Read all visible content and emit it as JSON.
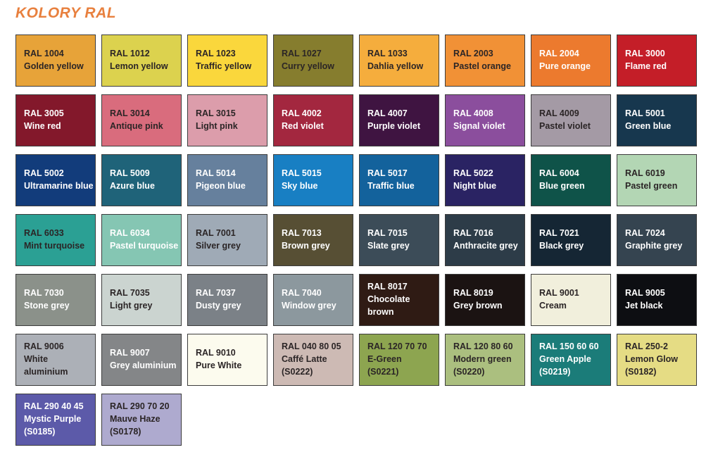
{
  "title": {
    "text": "KOLORY RAL"
  },
  "colors": {
    "accent": "#E8803E",
    "swatch_border": "#3C3C3C",
    "text_dark": "#2B2526",
    "text_light": "#FFFFFF",
    "page_bg": "#FFFFFF"
  },
  "swatches": [
    {
      "code": "RAL 1004",
      "name": "Golden yellow",
      "sub": "",
      "bg": "#E7A339",
      "text": "dark"
    },
    {
      "code": "RAL 1012",
      "name": "Lemon yellow",
      "sub": "",
      "bg": "#DCD24E",
      "text": "dark"
    },
    {
      "code": "RAL 1023",
      "name": "Traffic yellow",
      "sub": "",
      "bg": "#FAD73C",
      "text": "dark"
    },
    {
      "code": "RAL 1027",
      "name": "Curry yellow",
      "sub": "",
      "bg": "#867D2E",
      "text": "dark"
    },
    {
      "code": "RAL 1033",
      "name": "Dahlia yellow",
      "sub": "",
      "bg": "#F5AD3D",
      "text": "dark"
    },
    {
      "code": "RAL 2003",
      "name": "Pastel orange",
      "sub": "",
      "bg": "#F19136",
      "text": "dark"
    },
    {
      "code": "RAL 2004",
      "name": "Pure orange",
      "sub": "",
      "bg": "#EC7A2E",
      "text": "light"
    },
    {
      "code": "RAL 3000",
      "name": "Flame red",
      "sub": "",
      "bg": "#C41E28",
      "text": "light"
    },
    {
      "code": "RAL 3005",
      "name": "Wine red",
      "sub": "",
      "bg": "#83182B",
      "text": "light"
    },
    {
      "code": "RAL 3014",
      "name": "Antique pink",
      "sub": "",
      "bg": "#D96C7D",
      "text": "dark"
    },
    {
      "code": "RAL 3015",
      "name": "Light pink",
      "sub": "",
      "bg": "#DC9DAB",
      "text": "dark"
    },
    {
      "code": "RAL 4002",
      "name": "Red violet",
      "sub": "",
      "bg": "#A3273F",
      "text": "light"
    },
    {
      "code": "RAL 4007",
      "name": "Purple violet",
      "sub": "",
      "bg": "#3F1441",
      "text": "light"
    },
    {
      "code": "RAL 4008",
      "name": "Signal violet",
      "sub": "",
      "bg": "#8B4E9D",
      "text": "light"
    },
    {
      "code": "RAL 4009",
      "name": "Pastel violet",
      "sub": "",
      "bg": "#A49AA5",
      "text": "dark"
    },
    {
      "code": "RAL 5001",
      "name": "Green blue",
      "sub": "",
      "bg": "#17374E",
      "text": "light"
    },
    {
      "code": "RAL 5002",
      "name": "Ultramarine blue",
      "sub": "",
      "bg": "#123C7B",
      "text": "light"
    },
    {
      "code": "RAL 5009",
      "name": "Azure blue",
      "sub": "",
      "bg": "#1F6379",
      "text": "light"
    },
    {
      "code": "RAL 5014",
      "name": "Pigeon blue",
      "sub": "",
      "bg": "#66809D",
      "text": "light"
    },
    {
      "code": "RAL 5015",
      "name": "Sky blue",
      "sub": "",
      "bg": "#187FC3",
      "text": "light"
    },
    {
      "code": "RAL 5017",
      "name": "Traffic blue",
      "sub": "",
      "bg": "#13629C",
      "text": "light"
    },
    {
      "code": "RAL 5022",
      "name": "Night blue",
      "sub": "",
      "bg": "#2A2363",
      "text": "light"
    },
    {
      "code": "RAL 6004",
      "name": "Blue green",
      "sub": "",
      "bg": "#0F5349",
      "text": "light"
    },
    {
      "code": "RAL 6019",
      "name": "Pastel green",
      "sub": "",
      "bg": "#B3D6B4",
      "text": "dark"
    },
    {
      "code": "RAL 6033",
      "name": "Mint turquoise",
      "sub": "",
      "bg": "#2BA094",
      "text": "dark"
    },
    {
      "code": "RAL 6034",
      "name": "Pastel turquoise",
      "sub": "",
      "bg": "#85C6B3",
      "text": "light"
    },
    {
      "code": "RAL 7001",
      "name": "Silver grey",
      "sub": "",
      "bg": "#9FAAB6",
      "text": "dark"
    },
    {
      "code": "RAL 7013",
      "name": "Brown grey",
      "sub": "",
      "bg": "#574F34",
      "text": "light"
    },
    {
      "code": "RAL 7015",
      "name": "Slate grey",
      "sub": "",
      "bg": "#3C4C58",
      "text": "light"
    },
    {
      "code": "RAL 7016",
      "name": "Anthracite grey",
      "sub": "",
      "bg": "#2D3C48",
      "text": "light"
    },
    {
      "code": "RAL 7021",
      "name": "Black grey",
      "sub": "",
      "bg": "#152634",
      "text": "light"
    },
    {
      "code": "RAL 7024",
      "name": "Graphite grey",
      "sub": "",
      "bg": "#354450",
      "text": "light"
    },
    {
      "code": "RAL 7030",
      "name": "Stone grey",
      "sub": "",
      "bg": "#8B918A",
      "text": "light"
    },
    {
      "code": "RAL 7035",
      "name": "Light grey",
      "sub": "",
      "bg": "#CBD4D0",
      "text": "dark"
    },
    {
      "code": "RAL 7037",
      "name": "Dusty grey",
      "sub": "",
      "bg": "#7B8187",
      "text": "light"
    },
    {
      "code": "RAL 7040",
      "name": "Window grey",
      "sub": "",
      "bg": "#8C989E",
      "text": "light"
    },
    {
      "code": "RAL 8017",
      "name": "Chocolate brown",
      "sub": "",
      "bg": "#2F1B14",
      "text": "light"
    },
    {
      "code": "RAL 8019",
      "name": "Grey brown",
      "sub": "",
      "bg": "#1B1312",
      "text": "light"
    },
    {
      "code": "RAL 9001",
      "name": "Cream",
      "sub": "",
      "bg": "#F1EFDC",
      "text": "dark"
    },
    {
      "code": "RAL 9005",
      "name": "Jet black",
      "sub": "",
      "bg": "#0D0E12",
      "text": "light"
    },
    {
      "code": "RAL 9006",
      "name": "White aluminium",
      "sub": "",
      "bg": "#ACB0B7",
      "text": "dark"
    },
    {
      "code": "RAL 9007",
      "name": "Grey aluminium",
      "sub": "",
      "bg": "#848688",
      "text": "light"
    },
    {
      "code": "RAL 9010",
      "name": "Pure White",
      "sub": "",
      "bg": "#FCFBEE",
      "text": "dark"
    },
    {
      "code": "RAL 040 80 05",
      "name": "Caffé Latte",
      "sub": "(S0222)",
      "bg": "#CDBAB4",
      "text": "dark"
    },
    {
      "code": "RAL 120 70 70",
      "name": "E-Green",
      "sub": "(S0221)",
      "bg": "#8DA550",
      "text": "dark"
    },
    {
      "code": "RAL 120 80 60",
      "name": "Modern green",
      "sub": "(S0220)",
      "bg": "#ABBF7F",
      "text": "dark"
    },
    {
      "code": "RAL 150 60 60",
      "name": "Green Apple",
      "sub": "(S0219)",
      "bg": "#1B7C79",
      "text": "light"
    },
    {
      "code": "RAL 250-2",
      "name": "Lemon Glow",
      "sub": "(S0182)",
      "bg": "#E5DC84",
      "text": "dark"
    },
    {
      "code": "RAL 290 40 45",
      "name": "Mystic Purple",
      "sub": "(S0185)",
      "bg": "#5C5AA9",
      "text": "light"
    },
    {
      "code": "RAL 290 70 20",
      "name": "Mauve Haze",
      "sub": "(S0178)",
      "bg": "#AEAACF",
      "text": "dark"
    }
  ]
}
